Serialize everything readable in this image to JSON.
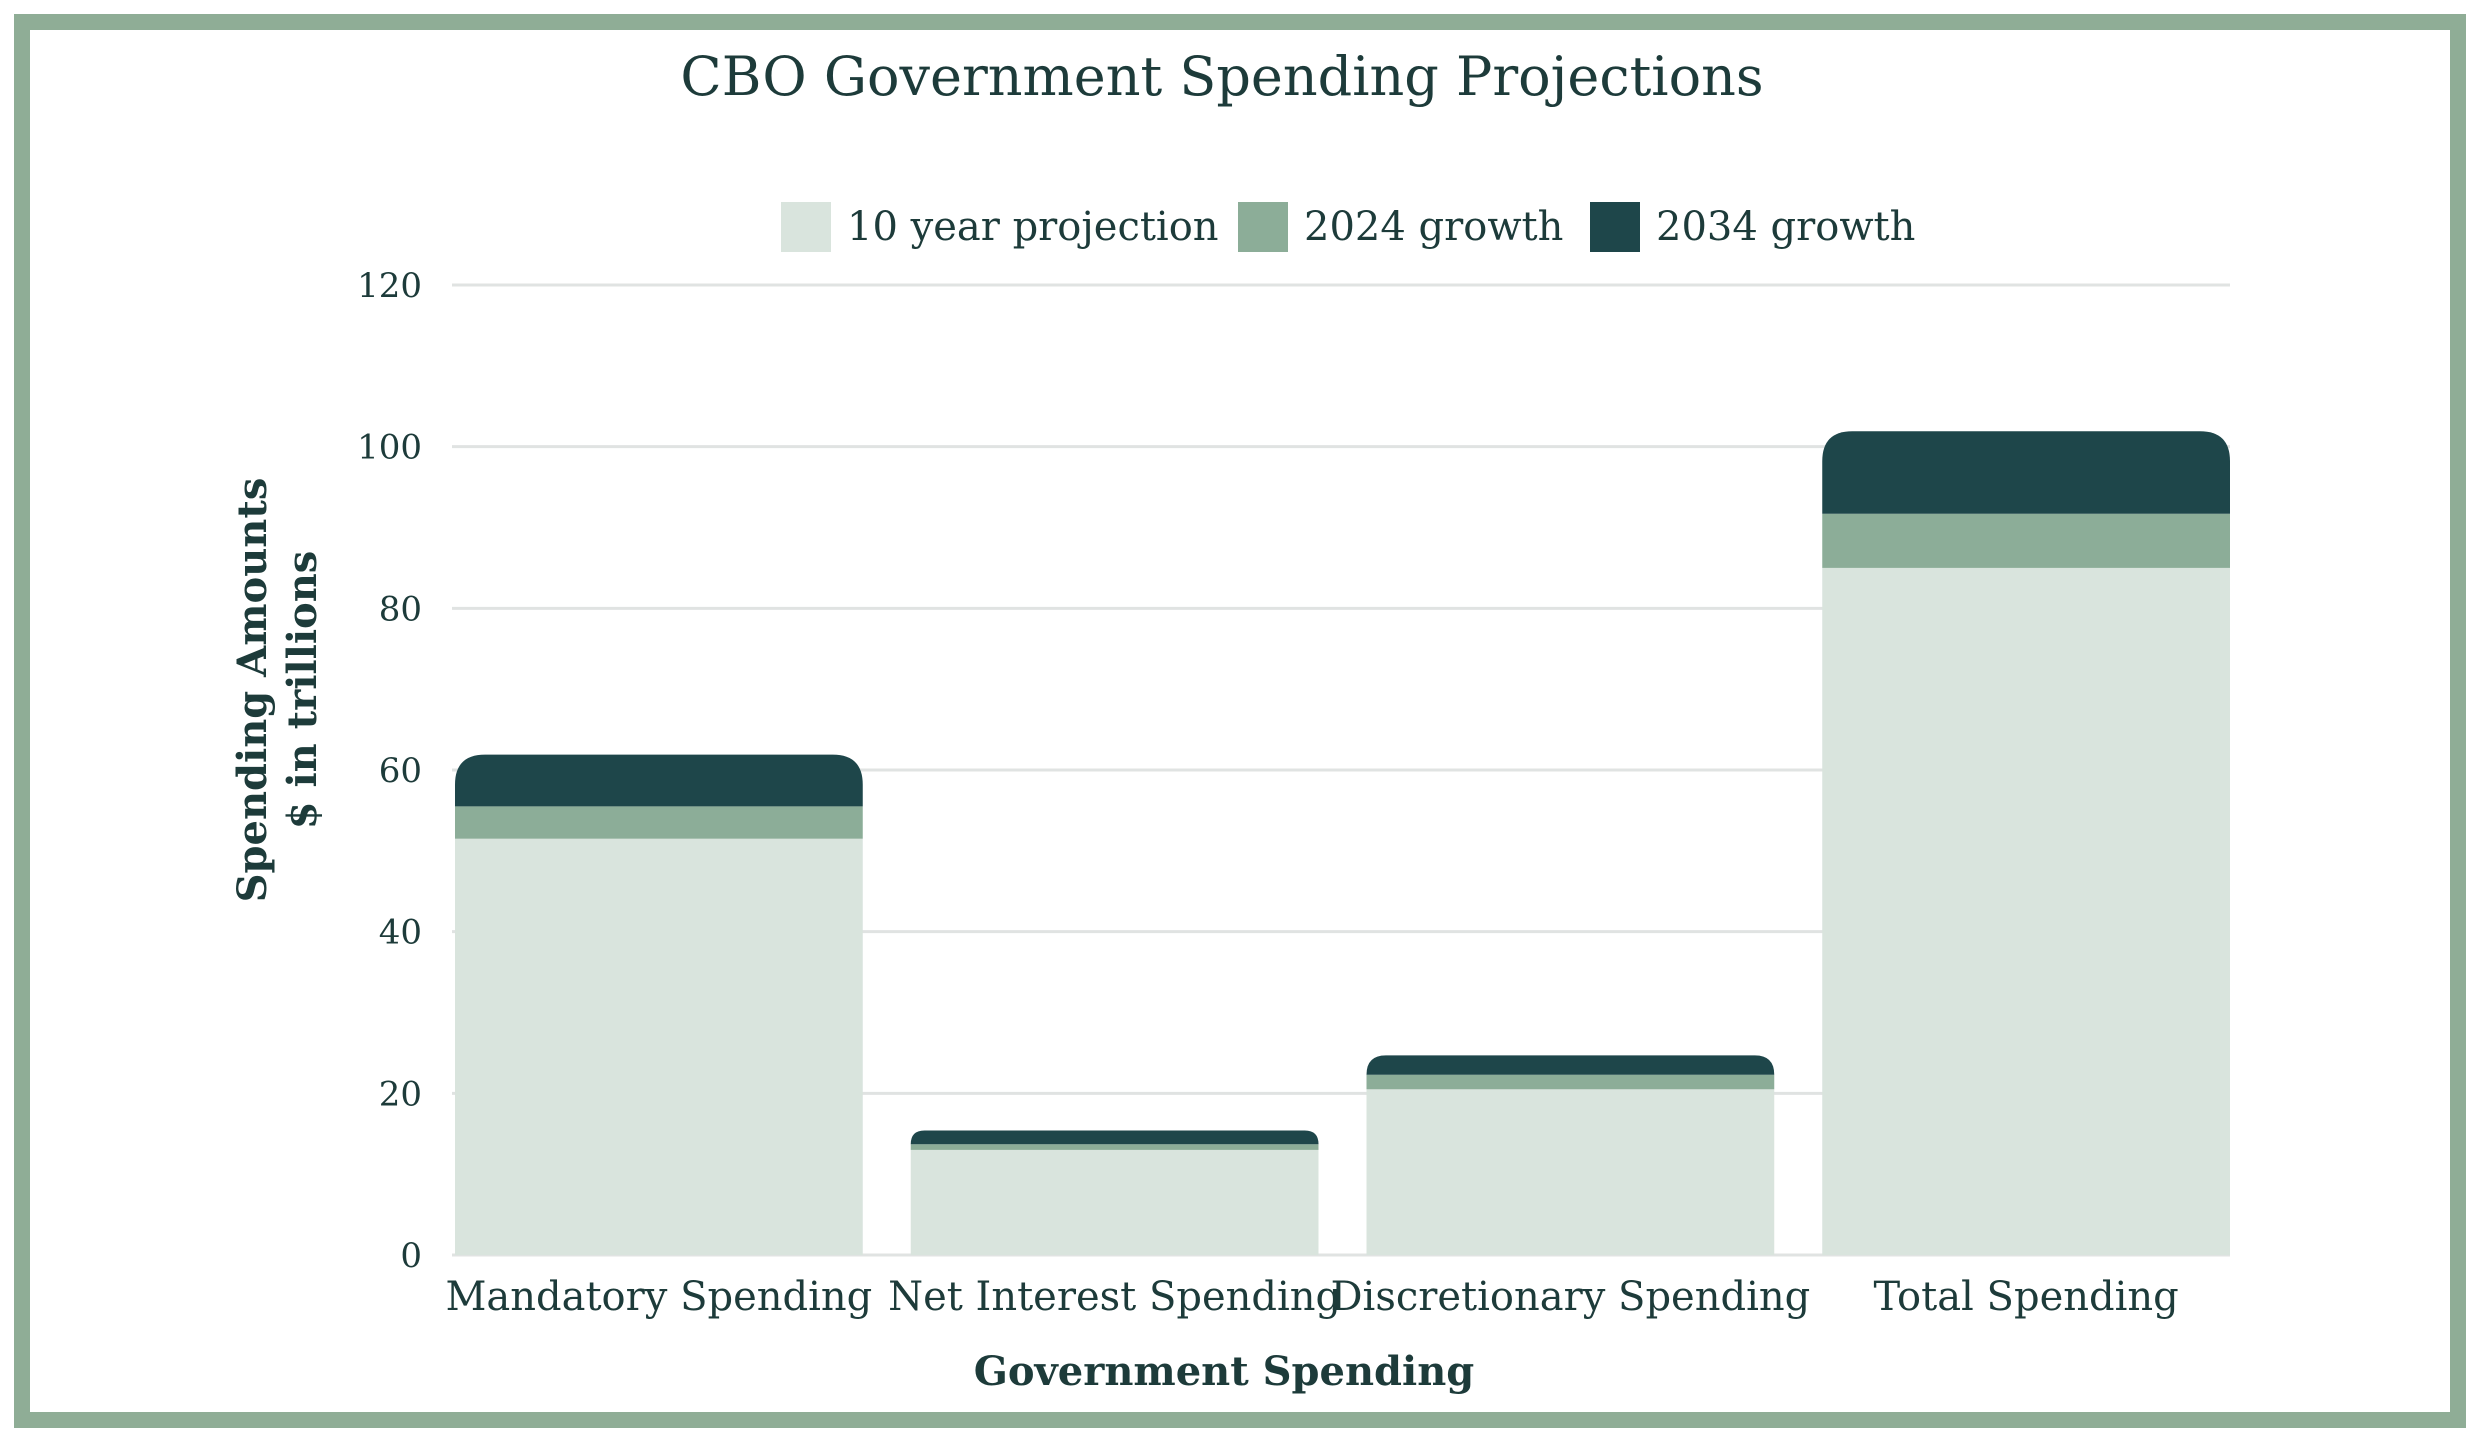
{
  "chart_data": {
    "type": "bar",
    "stacked": true,
    "title": "CBO Government Spending Projections",
    "xlabel": "Government Spending",
    "ylabel": [
      "Spending Amounts",
      "$ in trillions"
    ],
    "categories": [
      "Mandatory Spending",
      "Net Interest Spending",
      "Discretionary Spending",
      "Total Spending"
    ],
    "series": [
      {
        "name": "10 year projection",
        "color": "#D9E4DD",
        "values": [
          51.5,
          13.0,
          20.5,
          85.0
        ]
      },
      {
        "name": "2024 growth",
        "color": "#8CAD98",
        "values": [
          4.0,
          0.7,
          1.8,
          6.7
        ]
      },
      {
        "name": "2034 growth",
        "color": "#1E464A",
        "values": [
          6.4,
          1.7,
          2.4,
          10.2
        ]
      }
    ],
    "ylim": [
      0,
      120
    ],
    "yticks": [
      0,
      20,
      40,
      60,
      80,
      100,
      120
    ],
    "ytick_labels": [
      "0",
      "20",
      "40",
      "60",
      "80",
      "100",
      "120"
    ],
    "grid": true,
    "legend_position": "top-center"
  },
  "colors": {
    "frame_border": "#8FAD96",
    "text": "#1D3B3A",
    "gridline": "#E0E3E2"
  }
}
